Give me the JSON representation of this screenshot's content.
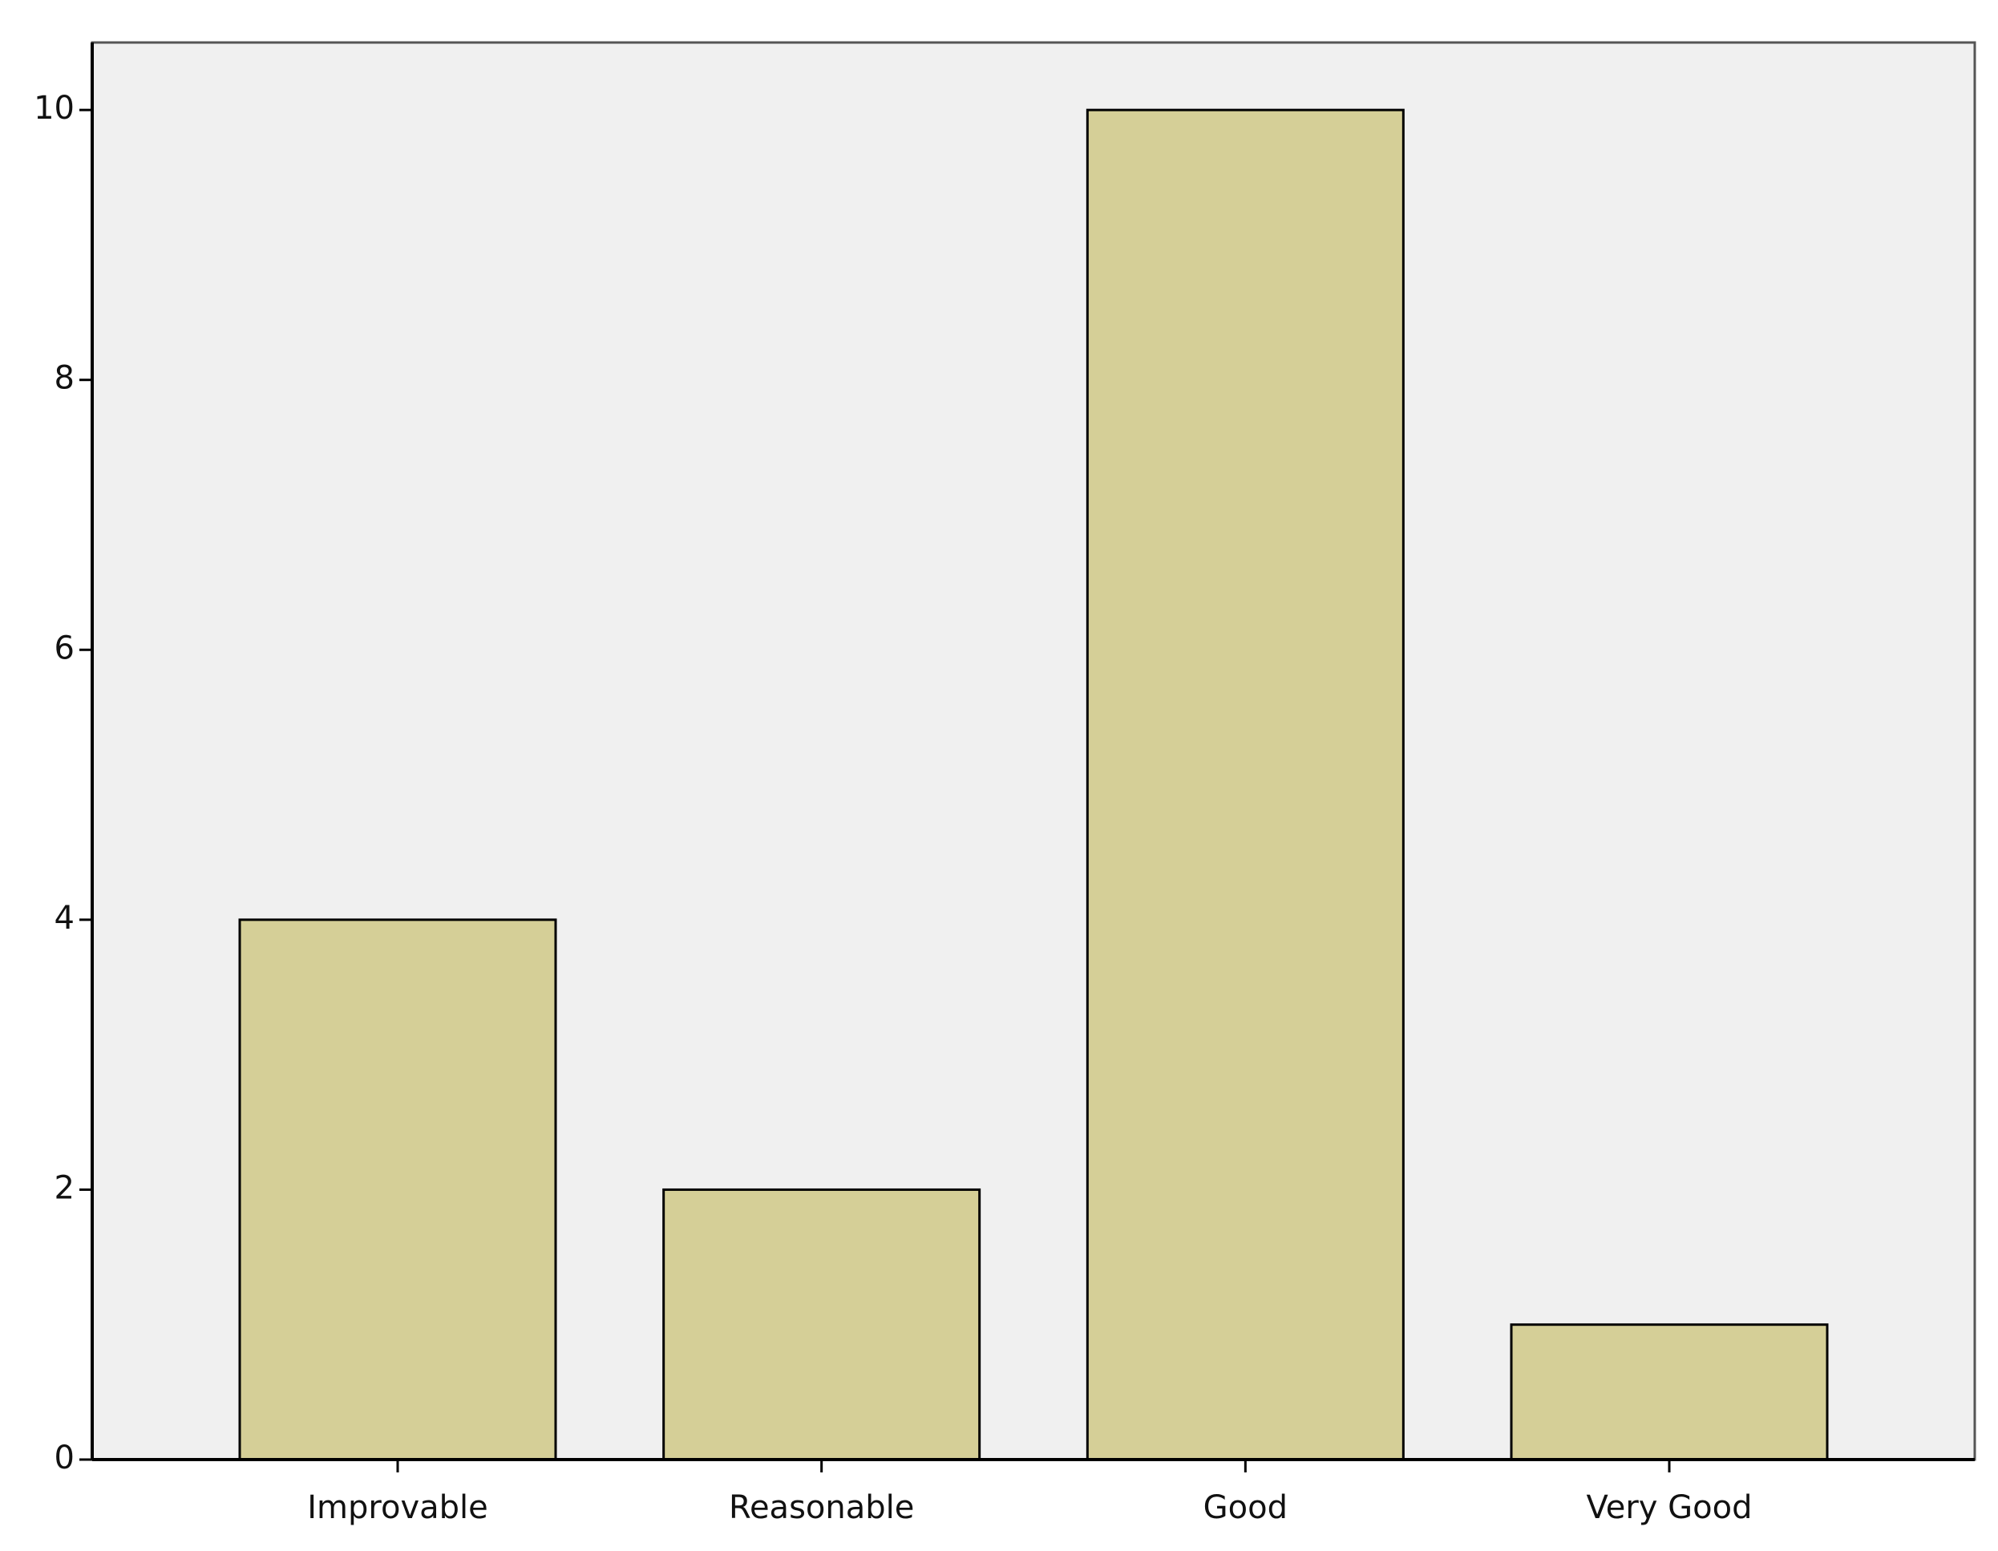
{
  "chart_data": {
    "type": "bar",
    "categories": [
      "Improvable",
      "Reasonable",
      "Good",
      "Very Good"
    ],
    "values": [
      4,
      2,
      10,
      1
    ],
    "color": "#d5cf97",
    "ylim": [
      0,
      10.5
    ],
    "yticks": [
      0,
      2,
      4,
      6,
      8,
      10
    ],
    "grid": false
  }
}
